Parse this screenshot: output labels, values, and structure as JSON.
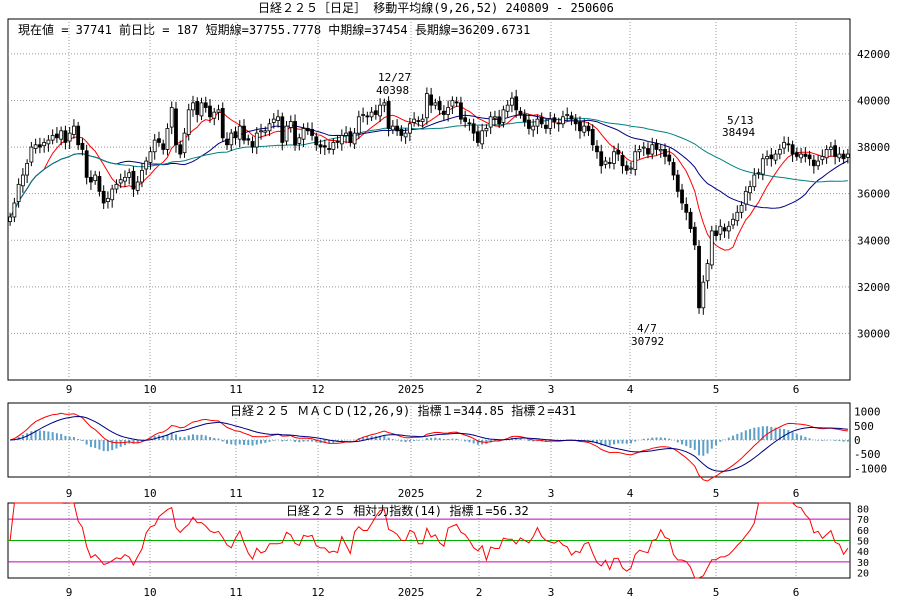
{
  "header": {
    "title": "日経２２５［日足］ 移動平均線(9,26,52)  240809 - 250606",
    "info": "現在値 = 37741  前日比 = 187  短期線=37755.7778  中期線=37454  長期線=36209.6731"
  },
  "macd_panel": {
    "title": "日経２２５    ＭＡＣＤ(12,26,9) 指標１=344.85  指標２=431"
  },
  "rsi_panel": {
    "title": "日経２２５    相対力指数(14) 指標１=56.32"
  },
  "annotations": [
    {
      "id": "ann-1227",
      "date": "12/27",
      "value": "40398"
    },
    {
      "id": "ann-0407",
      "date": "4/7",
      "value": "30792"
    },
    {
      "id": "ann-0513",
      "date": "5/13",
      "value": "38494"
    }
  ],
  "chart_data": [
    {
      "type": "candlestick",
      "title": "日経２２５［日足］ 移動平均線(9,26,52)  240809 - 250606",
      "x_tick_labels": [
        "9",
        "10",
        "11",
        "12",
        "2025",
        "2",
        "3",
        "4",
        "5",
        "6"
      ],
      "y_ticks": [
        30000,
        32000,
        34000,
        36000,
        38000,
        40000,
        42000
      ],
      "ylim": [
        28000,
        43500
      ],
      "grid": true,
      "ohlc_close": [
        35000,
        35600,
        36400,
        36800,
        37300,
        38000,
        38100,
        38000,
        38200,
        38300,
        38500,
        38400,
        38700,
        38200,
        38600,
        38900,
        38100,
        37900,
        36700,
        36500,
        36800,
        36100,
        35600,
        35800,
        36200,
        36400,
        36600,
        36700,
        36900,
        36200,
        36500,
        37000,
        37400,
        37800,
        38300,
        38200,
        37900,
        38800,
        39700,
        38100,
        37700,
        38600,
        39600,
        39900,
        39400,
        39900,
        39700,
        39300,
        39500,
        39600,
        38400,
        38100,
        38600,
        38400,
        38900,
        38300,
        38300,
        38000,
        38600,
        38700,
        38700,
        39000,
        39200,
        39300,
        38200,
        38900,
        39100,
        38100,
        38400,
        38800,
        38700,
        38500,
        38100,
        38000,
        38000,
        37900,
        38200,
        38200,
        38500,
        38600,
        38200,
        38600,
        39300,
        39400,
        39300,
        39500,
        39400,
        39800,
        39900,
        38800,
        38900,
        38700,
        38500,
        38600,
        39000,
        39200,
        39100,
        39200,
        40300,
        39800,
        39900,
        39600,
        39400,
        39700,
        40000,
        39900,
        39200,
        39100,
        39000,
        38600,
        38200,
        38700,
        38800,
        39300,
        39300,
        39000,
        39600,
        39800,
        40100,
        39600,
        39400,
        39100,
        38800,
        38900,
        39200,
        39000,
        38800,
        39200,
        39100,
        39000,
        39300,
        39400,
        39200,
        39000,
        38700,
        38900,
        38700,
        38100,
        37800,
        37200,
        37400,
        37300,
        37800,
        37700,
        37200,
        37000,
        37100,
        37800,
        37900,
        38000,
        37700,
        38100,
        37900,
        37900,
        37600,
        37400,
        36800,
        36100,
        35600,
        35200,
        34500,
        33800,
        31100,
        32200,
        33000,
        34400,
        34200,
        34600,
        34400,
        34600,
        34900,
        35200,
        35500,
        36100,
        36300,
        36800,
        36900,
        37500,
        37600,
        37500,
        37700,
        37900,
        38200,
        38100,
        37700,
        37600,
        37700,
        37600,
        37500,
        37200,
        37400,
        37600,
        37900,
        38000,
        37600,
        37700,
        37500,
        37700
      ],
      "annotations": [
        {
          "label": "12/27",
          "value": 40398
        },
        {
          "label": "4/7",
          "value": 30792
        },
        {
          "label": "5/13",
          "value": 38494
        }
      ],
      "moving_averages": [
        {
          "period": 9,
          "color": "#ff0000",
          "last": 37755.7778
        },
        {
          "period": 26,
          "color": "#000080",
          "last": 37454
        },
        {
          "period": 52,
          "color": "#008080",
          "last": 36209.6731
        }
      ],
      "current": 37741,
      "change": 187
    },
    {
      "type": "line",
      "title": "日経２２５    ＭＡＣＤ(12,26,9) 指標１=344.85  指標２=431",
      "y_ticks": [
        -1000,
        -500,
        0,
        500,
        1000
      ],
      "ylim": [
        -1300,
        1300
      ],
      "series": [
        {
          "name": "指標１",
          "last": 344.85
        },
        {
          "name": "指標２",
          "last": 431
        }
      ]
    },
    {
      "type": "line",
      "title": "日経２２５    相対力指数(14) 指標１=56.32",
      "y_ticks": [
        20,
        30,
        40,
        50,
        60,
        70,
        80
      ],
      "ylim": [
        15,
        85
      ],
      "reference_lines": [
        30,
        50,
        70
      ],
      "series": [
        {
          "name": "指標１",
          "last": 56.32
        }
      ]
    }
  ]
}
